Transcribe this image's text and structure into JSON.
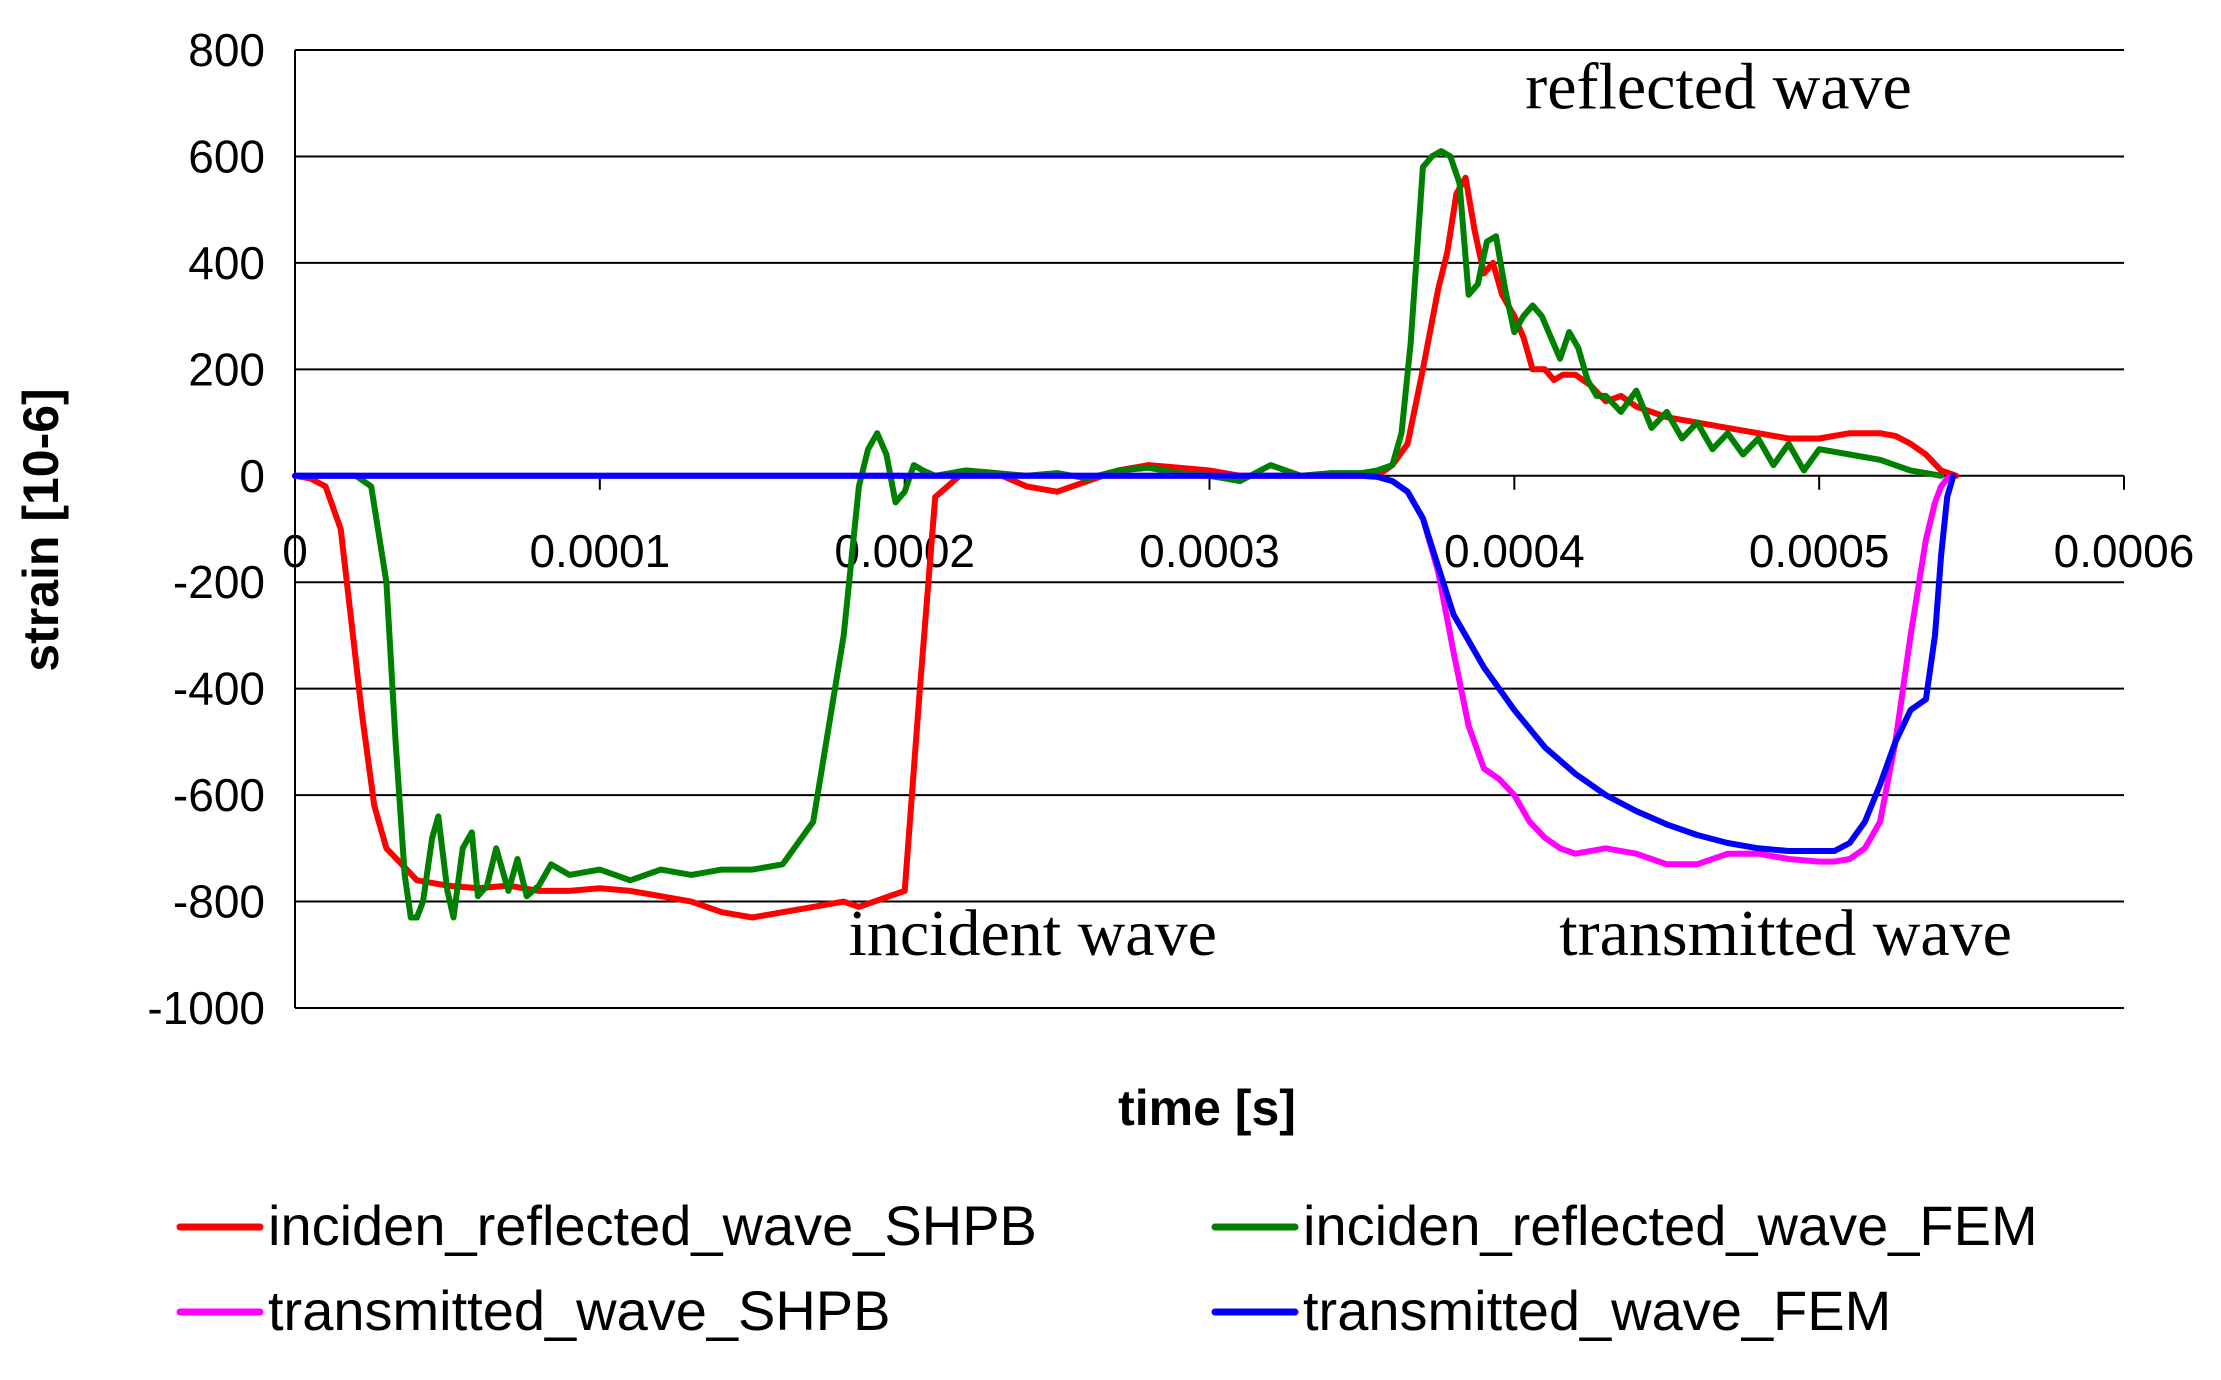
{
  "chart_data": {
    "type": "line",
    "title": "",
    "xlabel": "time [s]",
    "ylabel": "strain [10-6]",
    "xlim": [
      0,
      0.0006
    ],
    "ylim": [
      -1000,
      800
    ],
    "x_ticks": [
      "0",
      "0.0001",
      "0.0002",
      "0.0003",
      "0.0004",
      "0.0005",
      "0.0006"
    ],
    "x_tick_values": [
      0,
      0.0001,
      0.0002,
      0.0003,
      0.0004,
      0.0005,
      0.0006
    ],
    "y_ticks": [
      "800",
      "600",
      "400",
      "200",
      "0",
      "-200",
      "-400",
      "-600",
      "-800",
      "-1000"
    ],
    "y_tick_values": [
      800,
      600,
      400,
      200,
      0,
      -200,
      -400,
      -600,
      -800,
      -1000
    ],
    "grid": true,
    "legend_position": "bottom",
    "annotations": [
      {
        "text": "reflected wave",
        "x": 0.000467,
        "y": 690
      },
      {
        "text": "incident wave",
        "x": 0.000242,
        "y": -900
      },
      {
        "text": "transmitted wave",
        "x": 0.000489,
        "y": -900
      }
    ],
    "series": [
      {
        "name": "inciden_reflected_wave_SHPB",
        "color": "#ff0000",
        "x": [
          0,
          5e-06,
          1e-05,
          1.5e-05,
          1.8e-05,
          2.2e-05,
          2.6e-05,
          3e-05,
          3.5e-05,
          4e-05,
          5e-05,
          6e-05,
          7e-05,
          8e-05,
          9e-05,
          0.0001,
          0.00011,
          0.00012,
          0.00013,
          0.00014,
          0.00015,
          0.00016,
          0.00017,
          0.000175,
          0.00018,
          0.000185,
          0.00019,
          0.000195,
          0.0002,
          0.000205,
          0.00021,
          0.00022,
          0.00023,
          0.00024,
          0.00025,
          0.00026,
          0.00027,
          0.00028,
          0.00029,
          0.0003,
          0.00031,
          0.00032,
          0.00033,
          0.00034,
          0.00035,
          0.000355,
          0.00036,
          0.000365,
          0.00037,
          0.000375,
          0.000378,
          0.000381,
          0.000384,
          0.000387,
          0.00039,
          0.000393,
          0.000396,
          0.0004,
          0.000403,
          0.000406,
          0.00041,
          0.000413,
          0.000416,
          0.00042,
          0.000425,
          0.00043,
          0.000435,
          0.00044,
          0.00045,
          0.00046,
          0.00047,
          0.00048,
          0.00049,
          0.0005,
          0.00051,
          0.00052,
          0.000525,
          0.00053,
          0.000535,
          0.00054,
          0.000545
        ],
        "y": [
          0,
          -5,
          -20,
          -100,
          -250,
          -450,
          -620,
          -700,
          -730,
          -760,
          -770,
          -775,
          -770,
          -780,
          -780,
          -775,
          -780,
          -790,
          -800,
          -820,
          -830,
          -820,
          -810,
          -805,
          -800,
          -810,
          -800,
          -790,
          -780,
          -400,
          -40,
          10,
          5,
          -20,
          -30,
          -10,
          10,
          20,
          15,
          10,
          0,
          0,
          0,
          0,
          0,
          0,
          20,
          60,
          200,
          350,
          420,
          530,
          560,
          460,
          380,
          400,
          340,
          300,
          260,
          200,
          200,
          180,
          190,
          190,
          170,
          140,
          150,
          130,
          110,
          100,
          90,
          80,
          70,
          70,
          80,
          80,
          75,
          60,
          40,
          10,
          0
        ]
      },
      {
        "name": "inciden_reflected_wave_FEM",
        "color": "#008000",
        "x": [
          0,
          2e-05,
          2.5e-05,
          3e-05,
          3.3e-05,
          3.6e-05,
          3.8e-05,
          4e-05,
          4.2e-05,
          4.5e-05,
          4.7e-05,
          5e-05,
          5.2e-05,
          5.5e-05,
          5.8e-05,
          6e-05,
          6.3e-05,
          6.6e-05,
          7e-05,
          7.3e-05,
          7.6e-05,
          8e-05,
          8.4e-05,
          9e-05,
          0.0001,
          0.00011,
          0.00012,
          0.00013,
          0.00014,
          0.00015,
          0.00016,
          0.00017,
          0.00018,
          0.000185,
          0.000188,
          0.000191,
          0.000194,
          0.000197,
          0.0002,
          0.000203,
          0.000206,
          0.00021,
          0.00022,
          0.00023,
          0.00024,
          0.00025,
          0.00026,
          0.00027,
          0.00028,
          0.00029,
          0.0003,
          0.00031,
          0.00032,
          0.00033,
          0.00034,
          0.00035,
          0.000355,
          0.00036,
          0.000363,
          0.000366,
          0.00037,
          0.000373,
          0.000376,
          0.000379,
          0.000382,
          0.000385,
          0.000388,
          0.000391,
          0.000394,
          0.000397,
          0.0004,
          0.000403,
          0.000406,
          0.000409,
          0.000412,
          0.000415,
          0.000418,
          0.000421,
          0.000424,
          0.000427,
          0.00043,
          0.000435,
          0.00044,
          0.000445,
          0.00045,
          0.000455,
          0.00046,
          0.000465,
          0.00047,
          0.000475,
          0.00048,
          0.000485,
          0.00049,
          0.000495,
          0.0005,
          0.00051,
          0.00052,
          0.00053,
          0.000535,
          0.00054
        ],
        "y": [
          0,
          0,
          -20,
          -200,
          -500,
          -750,
          -830,
          -830,
          -800,
          -680,
          -640,
          -780,
          -830,
          -700,
          -670,
          -790,
          -770,
          -700,
          -780,
          -720,
          -790,
          -770,
          -730,
          -750,
          -740,
          -760,
          -740,
          -750,
          -740,
          -740,
          -730,
          -650,
          -300,
          -20,
          50,
          80,
          40,
          -50,
          -30,
          20,
          10,
          0,
          10,
          5,
          0,
          5,
          -5,
          10,
          15,
          5,
          0,
          -10,
          20,
          0,
          5,
          5,
          10,
          20,
          80,
          250,
          580,
          600,
          610,
          600,
          550,
          340,
          360,
          440,
          450,
          350,
          270,
          300,
          320,
          300,
          260,
          220,
          270,
          240,
          180,
          150,
          150,
          120,
          160,
          90,
          120,
          70,
          100,
          50,
          80,
          40,
          70,
          20,
          60,
          10,
          50,
          40,
          30,
          10,
          5,
          0
        ]
      },
      {
        "name": "transmitted_wave_SHPB",
        "color": "#ff00ff",
        "x": [
          0,
          0.00035,
          0.000355,
          0.00036,
          0.000365,
          0.00037,
          0.000375,
          0.00038,
          0.000385,
          0.00039,
          0.000395,
          0.0004,
          0.000405,
          0.00041,
          0.000415,
          0.00042,
          0.00043,
          0.00044,
          0.00045,
          0.00046,
          0.00047,
          0.00048,
          0.00049,
          0.0005,
          0.000505,
          0.00051,
          0.000515,
          0.00052,
          0.000525,
          0.00053,
          0.000535,
          0.000538,
          0.00054,
          0.000542,
          0.000544
        ],
        "y": [
          0,
          0,
          -2,
          -10,
          -30,
          -80,
          -180,
          -330,
          -470,
          -550,
          -570,
          -600,
          -650,
          -680,
          -700,
          -710,
          -700,
          -710,
          -730,
          -730,
          -710,
          -710,
          -720,
          -725,
          -725,
          -720,
          -700,
          -650,
          -500,
          -300,
          -120,
          -50,
          -20,
          -5,
          0
        ]
      },
      {
        "name": "transmitted_wave_FEM",
        "color": "#0000ff",
        "x": [
          0,
          0.00035,
          0.000355,
          0.00036,
          0.000365,
          0.00037,
          0.000375,
          0.00038,
          0.00039,
          0.0004,
          0.00041,
          0.00042,
          0.00043,
          0.00044,
          0.00045,
          0.00046,
          0.00047,
          0.00048,
          0.00049,
          0.0005,
          0.000505,
          0.00051,
          0.000515,
          0.00052,
          0.000525,
          0.00053,
          0.000535,
          0.000538,
          0.00054,
          0.000542,
          0.000544
        ],
        "y": [
          0,
          0,
          -2,
          -10,
          -30,
          -80,
          -170,
          -260,
          -360,
          -440,
          -510,
          -560,
          -600,
          -630,
          -655,
          -675,
          -690,
          -700,
          -705,
          -705,
          -705,
          -690,
          -650,
          -580,
          -500,
          -440,
          -420,
          -300,
          -150,
          -40,
          0
        ]
      }
    ]
  }
}
